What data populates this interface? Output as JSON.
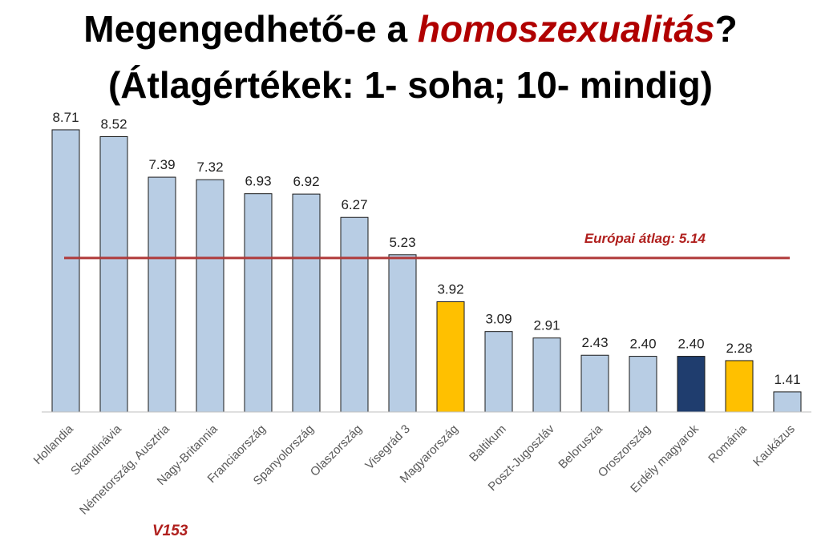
{
  "title": {
    "line1_before": "Megengedhető-e a ",
    "line1_emphasis": "homoszexualitás",
    "line1_after": "?",
    "line2": "(Átlagértékek: 1- soha; 10- mindig)"
  },
  "footnote": "V153",
  "colors": {
    "bar_default": "#b8cde4",
    "bar_highlight": "#ffc000",
    "bar_dark": "#1f3d6e",
    "bar_stroke": "#1a1a1a",
    "average_line": "#b03a3a",
    "average_label": "#b0201e",
    "title_emphasis": "#b00000"
  },
  "chart_data": {
    "type": "bar",
    "categories": [
      "Hollandia",
      "Skandinávia",
      "Németország, Ausztria",
      "Nagy-Britannia",
      "Franciaország",
      "Spanyolország",
      "Olaszország",
      "Visegrád 3",
      "Magyarország",
      "Baltikum",
      "Poszt-Jugoszláv",
      "Beloruszia",
      "Oroszország",
      "Erdély magyarok",
      "Románia",
      "Kaukázus"
    ],
    "values": [
      8.71,
      8.52,
      7.39,
      7.32,
      6.93,
      6.92,
      6.27,
      5.23,
      3.92,
      3.09,
      2.91,
      2.43,
      2.4,
      2.4,
      2.28,
      1.41
    ],
    "value_labels": [
      "8.71",
      "8.52",
      "7.39",
      "7.32",
      "6.93",
      "6.92",
      "6.27",
      "5.23",
      "3.92",
      "3.09",
      "2.91",
      "2.43",
      "2.40",
      "2.40",
      "2.28",
      "1.41"
    ],
    "bar_colors": [
      "default",
      "default",
      "default",
      "default",
      "default",
      "default",
      "default",
      "default",
      "highlight",
      "default",
      "default",
      "default",
      "default",
      "dark",
      "highlight",
      "default"
    ],
    "reference_line": {
      "value": 5.14,
      "label": "Európai átlag: 5.14"
    },
    "ylim": [
      0.85,
      9.2
    ],
    "grid": false,
    "legend": "none"
  }
}
